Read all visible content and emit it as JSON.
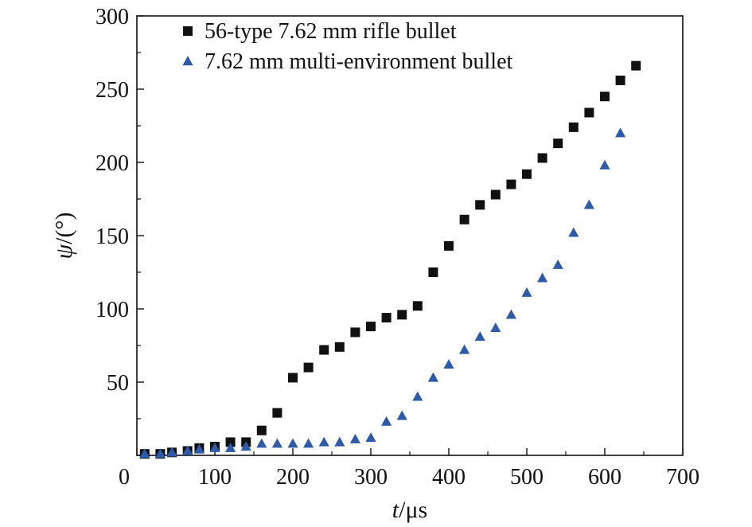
{
  "chart_data": {
    "type": "scatter",
    "title": "",
    "xlabel": {
      "italic": "t",
      "rest": "/μs"
    },
    "ylabel": {
      "italic": "ψ",
      "rest": "/(°)"
    },
    "xlim": [
      0,
      700
    ],
    "ylim": [
      0,
      300
    ],
    "xticks": [
      0,
      100,
      200,
      300,
      400,
      500,
      600,
      700
    ],
    "yticks": [
      50,
      100,
      150,
      200,
      250,
      300
    ],
    "yzero_label_shown": false,
    "grid": false,
    "legend_position": "top-left",
    "series": [
      {
        "name": "56-type 7.62 mm rifle bullet",
        "marker": "square",
        "color": "#111111",
        "points": [
          [
            10,
            1
          ],
          [
            30,
            1
          ],
          [
            45,
            2
          ],
          [
            65,
            3
          ],
          [
            80,
            5
          ],
          [
            100,
            6
          ],
          [
            120,
            9
          ],
          [
            140,
            9
          ],
          [
            160,
            17
          ],
          [
            180,
            29
          ],
          [
            200,
            53
          ],
          [
            220,
            60
          ],
          [
            240,
            72
          ],
          [
            260,
            74
          ],
          [
            280,
            84
          ],
          [
            300,
            88
          ],
          [
            320,
            94
          ],
          [
            340,
            96
          ],
          [
            360,
            102
          ],
          [
            380,
            125
          ],
          [
            400,
            143
          ],
          [
            420,
            161
          ],
          [
            440,
            171
          ],
          [
            460,
            178
          ],
          [
            480,
            185
          ],
          [
            500,
            192
          ],
          [
            520,
            203
          ],
          [
            540,
            213
          ],
          [
            560,
            224
          ],
          [
            580,
            234
          ],
          [
            600,
            245
          ],
          [
            620,
            256
          ],
          [
            640,
            266
          ]
        ]
      },
      {
        "name": "7.62 mm multi-environment bullet",
        "marker": "triangle",
        "color": "#2e5aa8",
        "points": [
          [
            10,
            1
          ],
          [
            30,
            1
          ],
          [
            45,
            2
          ],
          [
            65,
            3
          ],
          [
            80,
            4
          ],
          [
            100,
            5
          ],
          [
            120,
            5
          ],
          [
            140,
            6
          ],
          [
            160,
            8
          ],
          [
            180,
            8
          ],
          [
            200,
            8
          ],
          [
            220,
            8
          ],
          [
            240,
            9
          ],
          [
            260,
            9
          ],
          [
            280,
            11
          ],
          [
            300,
            12
          ],
          [
            320,
            23
          ],
          [
            340,
            27
          ],
          [
            360,
            40
          ],
          [
            380,
            53
          ],
          [
            400,
            62
          ],
          [
            420,
            72
          ],
          [
            440,
            81
          ],
          [
            460,
            87
          ],
          [
            480,
            96
          ],
          [
            500,
            111
          ],
          [
            520,
            121
          ],
          [
            540,
            130
          ],
          [
            560,
            152
          ],
          [
            580,
            171
          ],
          [
            600,
            198
          ],
          [
            620,
            220
          ]
        ]
      }
    ]
  }
}
